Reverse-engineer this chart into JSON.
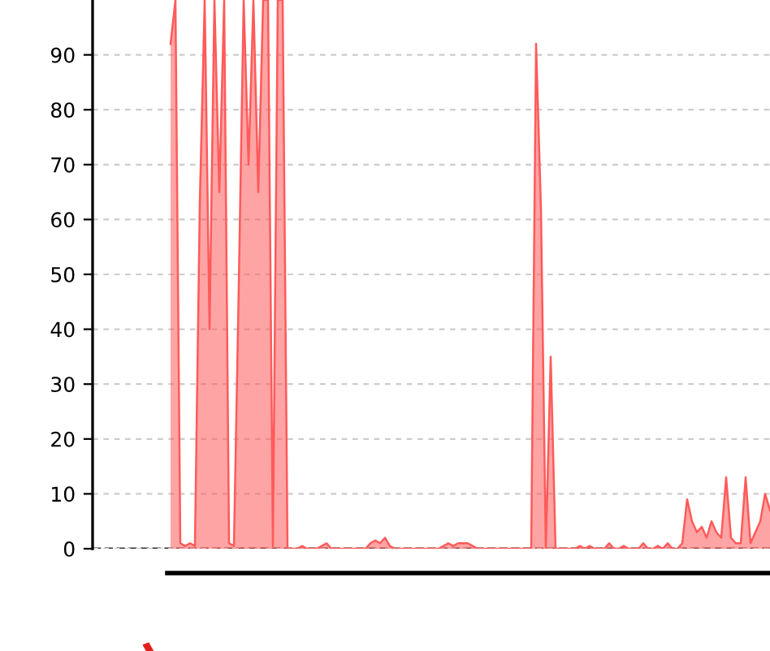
{
  "chart_data": {
    "type": "area",
    "categories": [
      null,
      null,
      null,
      null,
      null,
      null,
      null,
      null,
      null,
      null,
      null,
      null,
      null,
      null,
      null,
      null,
      null,
      null,
      null,
      null,
      null,
      null,
      null,
      null,
      null,
      null,
      null,
      null,
      null,
      null,
      null,
      null,
      null,
      null,
      null,
      null,
      null,
      null,
      null,
      null,
      null,
      null,
      null,
      null,
      null,
      null,
      null,
      null,
      null,
      null,
      null,
      null,
      null,
      null,
      null,
      null,
      null,
      null,
      null,
      null,
      null,
      null,
      null,
      null,
      null,
      null,
      null,
      null,
      null,
      null,
      null,
      null,
      null,
      null,
      null,
      null,
      null,
      null,
      null,
      null,
      null,
      null,
      null,
      null,
      null,
      null,
      null,
      null,
      null,
      null,
      null,
      null,
      null,
      null,
      null,
      null,
      null,
      null,
      null,
      null,
      null,
      null,
      null,
      null,
      null,
      null,
      null,
      null,
      null,
      null,
      null,
      null,
      null,
      null,
      null,
      null,
      null,
      null,
      null,
      null,
      null,
      null,
      null,
      null
    ],
    "series": [
      {
        "color": "#ff5a5a",
        "values": [
          92,
          100,
          1,
          0.5,
          1,
          0.5,
          63,
          100,
          40,
          100,
          65,
          100,
          1,
          0.5,
          48,
          100,
          70,
          100,
          65,
          100,
          100,
          0.5,
          100,
          100,
          0,
          0,
          0,
          0.5,
          0,
          0,
          0,
          0.5,
          1,
          0,
          0,
          0,
          0,
          0,
          0,
          0,
          0,
          1,
          1.5,
          1,
          2,
          0.5,
          0,
          0,
          0,
          0,
          0,
          0,
          0,
          0,
          0,
          0,
          0.5,
          1,
          0.5,
          1,
          1,
          1,
          0.5,
          0,
          0,
          0,
          0,
          0,
          0,
          0,
          0,
          0,
          0,
          0,
          0,
          92,
          62,
          0,
          35,
          0,
          0,
          0,
          0,
          0,
          0.5,
          0,
          0.5,
          0,
          0,
          0,
          1,
          0,
          0,
          0.5,
          0,
          0,
          0,
          1,
          0,
          0,
          0.5,
          0,
          1,
          0,
          0,
          1,
          9,
          5,
          3,
          4,
          2,
          5,
          3,
          2,
          13,
          2,
          1,
          1,
          13,
          1,
          3,
          5,
          10,
          7
        ]
      }
    ],
    "ylim": [
      0,
      100
    ],
    "yticks": [
      0,
      10,
      20,
      30,
      40,
      50,
      60,
      70,
      80,
      90
    ],
    "grid": "y",
    "ref_lines": [
      {
        "axis": "y",
        "value": 0,
        "color": "#333333",
        "line_style": "dashed"
      }
    ]
  }
}
